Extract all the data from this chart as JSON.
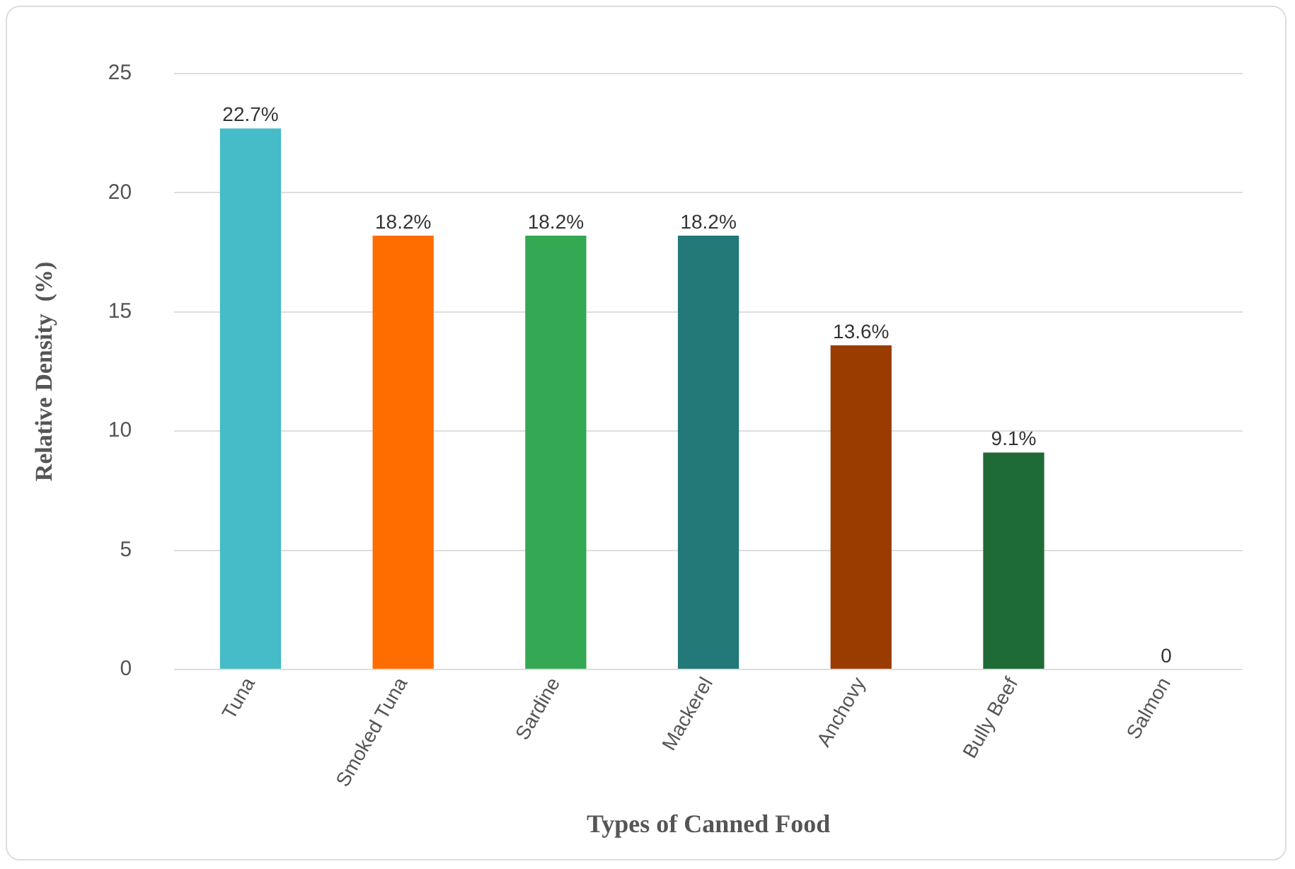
{
  "chart_data": {
    "type": "bar",
    "xlabel": "Types of Canned Food",
    "ylabel": "Relative Density  (%)",
    "categories": [
      "Tuna",
      "Smoked Tuna",
      "Sardine",
      "Mackerel",
      "Anchovy",
      "Bully Beef",
      "Salmon"
    ],
    "values": [
      22.7,
      18.2,
      18.2,
      18.2,
      13.6,
      9.1,
      0
    ],
    "colors": [
      "#45bcc8",
      "#ff6d00",
      "#34a853",
      "#237878",
      "#9a3c00",
      "#1e6b35",
      "#4a9aa0"
    ],
    "value_labels": [
      "22.7%",
      "18.2%",
      "18.2%",
      "18.2%",
      "13.6%",
      "9.1%",
      "0"
    ],
    "ylim": [
      0,
      25
    ],
    "yticks": [
      0,
      5,
      10,
      15,
      20,
      25
    ],
    "grid": "y",
    "legend": false
  }
}
